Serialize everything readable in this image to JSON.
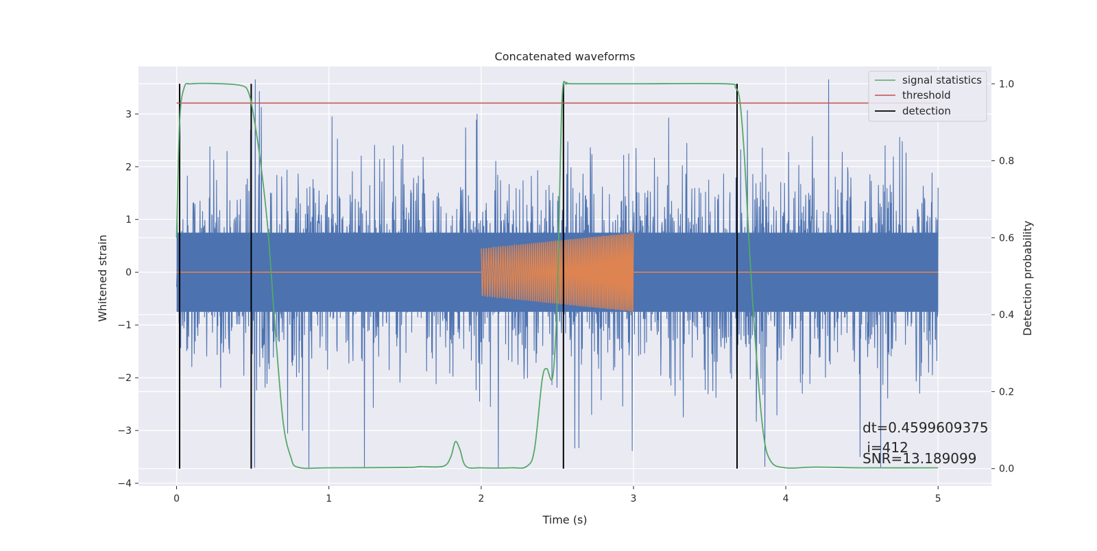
{
  "chart_data": {
    "type": "line",
    "title": "Concatenated waveforms",
    "xlabel": "Time (s)",
    "ylabel": "Whitened strain",
    "y2label": "Detection probability",
    "xlim": [
      -0.25,
      5.35
    ],
    "ylim": [
      -4.05,
      3.9
    ],
    "y2lim": [
      -0.045,
      1.045
    ],
    "xticks": [
      0,
      1,
      2,
      3,
      4,
      5
    ],
    "xtick_labels": [
      "0",
      "1",
      "2",
      "3",
      "4",
      "5"
    ],
    "yticks": [
      -4,
      -3,
      -2,
      -1,
      0,
      1,
      2,
      3
    ],
    "ytick_labels": [
      "−4",
      "−3",
      "−2",
      "−1",
      "0",
      "1",
      "2",
      "3"
    ],
    "y2ticks": [
      0.0,
      0.2,
      0.4,
      0.6,
      0.8,
      1.0
    ],
    "y2tick_labels": [
      "0.0",
      "0.2",
      "0.4",
      "0.6",
      "0.8",
      "1.0"
    ],
    "grid": true,
    "legend_position": "top-right",
    "legend": [
      "signal statistics",
      "threshold",
      "detection"
    ],
    "series": [
      {
        "name": "",
        "axis": "left",
        "color": "#4c72b0",
        "kind": "noise",
        "x_range": [
          0,
          5
        ],
        "band_amplitude": 0.75,
        "spike_range": [
          -3.7,
          3.65
        ]
      },
      {
        "name": "",
        "axis": "left",
        "color": "#dd8452",
        "kind": "injected-chirp",
        "x_range": [
          0,
          5
        ],
        "chirp_start": 2.0,
        "chirp_end": 3.0,
        "amplitude_start": 0.45,
        "amplitude_end": 0.75
      },
      {
        "name": "signal statistics",
        "axis": "right",
        "color": "#55a868",
        "x": [
          0,
          0.02,
          0.05,
          0.1,
          0.3,
          0.43,
          0.47,
          0.5,
          0.55,
          0.6,
          0.65,
          0.7,
          0.75,
          0.8,
          1.0,
          1.5,
          1.6,
          1.75,
          1.8,
          1.83,
          1.86,
          1.9,
          2.0,
          2.2,
          2.3,
          2.35,
          2.4,
          2.43,
          2.47,
          2.5,
          2.53,
          2.56,
          2.6,
          3.0,
          3.6,
          3.67,
          3.7,
          3.73,
          3.76,
          3.8,
          3.85,
          3.9,
          4.0,
          4.2,
          4.5,
          5.0
        ],
        "values": [
          0.6,
          0.9,
          0.99,
          1.0,
          1.0,
          0.995,
          0.98,
          0.93,
          0.8,
          0.62,
          0.35,
          0.12,
          0.03,
          0.003,
          0.002,
          0.003,
          0.005,
          0.006,
          0.03,
          0.07,
          0.05,
          0.006,
          0.002,
          0.002,
          0.006,
          0.05,
          0.23,
          0.26,
          0.24,
          0.45,
          0.95,
          1.0,
          1.0,
          1.0,
          1.0,
          0.99,
          0.95,
          0.8,
          0.58,
          0.33,
          0.1,
          0.02,
          0.002,
          0.004,
          0.002,
          0.002
        ]
      },
      {
        "name": "threshold",
        "axis": "right",
        "color": "#c44e52",
        "x": [
          0,
          5
        ],
        "values": [
          0.95,
          0.95
        ]
      },
      {
        "name": "detection",
        "axis": "right",
        "color": "#000000",
        "kind": "vertical-lines",
        "x": [
          0.02,
          0.49,
          2.54,
          3.68
        ]
      }
    ],
    "annotations": [
      "dt=0.4599609375",
      " i=412",
      "SNR=13.189099"
    ]
  }
}
